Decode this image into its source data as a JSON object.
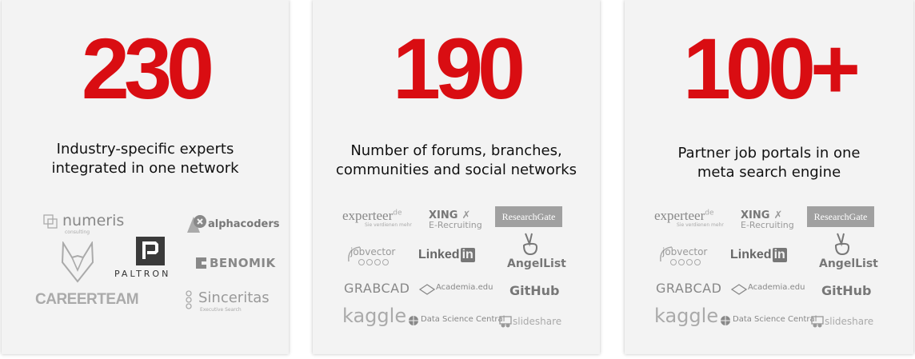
{
  "cards": [
    {
      "number": "230",
      "description_line1": "Industry-specific experts",
      "description_line2": "integrated in one network",
      "logos": {
        "numeris": "numeris",
        "numeris_sub": "consulting",
        "alphacoders": "alphacoders",
        "paltron": "PALTRON",
        "benomik": "BENOMIK",
        "careerteam": "CAREERTEAM",
        "sinceritas": "Sinceritas",
        "sinceritas_sub": "Executive Search"
      }
    },
    {
      "number": "190",
      "description_line1": "Number of forums, branches,",
      "description_line2": "communities and social networks",
      "logos": {
        "experteer": "experteer",
        "experteer_sup": "de",
        "experteer_sub": "Sie verdienen mehr",
        "xing": "XING",
        "xing_sub": "E-Recruiting",
        "researchgate": "ResearchGate",
        "jobvector": "jobvector",
        "linkedin_text": "Linked",
        "linkedin_in": "in",
        "angellist": "AngelList",
        "grabcad": "GRABCAD",
        "academia": "Academia.edu",
        "github": "GitHub",
        "kaggle": "kaggle",
        "datasciencecentral": "Data Science Central",
        "slideshare": "slideshare"
      }
    },
    {
      "number": "100+",
      "description_line1": "Partner job portals in one",
      "description_line2": "meta search engine",
      "logos": {
        "experteer": "experteer",
        "experteer_sup": "de",
        "experteer_sub": "Sie verdienen mehr",
        "xing": "XING",
        "xing_sub": "E-Recruiting",
        "researchgate": "ResearchGate",
        "jobvector": "jobvector",
        "linkedin_text": "Linked",
        "linkedin_in": "in",
        "angellist": "AngelList",
        "grabcad": "GRABCAD",
        "academia": "Academia.edu",
        "github": "GitHub",
        "kaggle": "kaggle",
        "datasciencecentral": "Data Science Central",
        "slideshare": "slideshare"
      }
    }
  ],
  "colors": {
    "accent": "#d90d12",
    "card_bg": "#f3f3f3",
    "logo_gray": "#999999"
  }
}
